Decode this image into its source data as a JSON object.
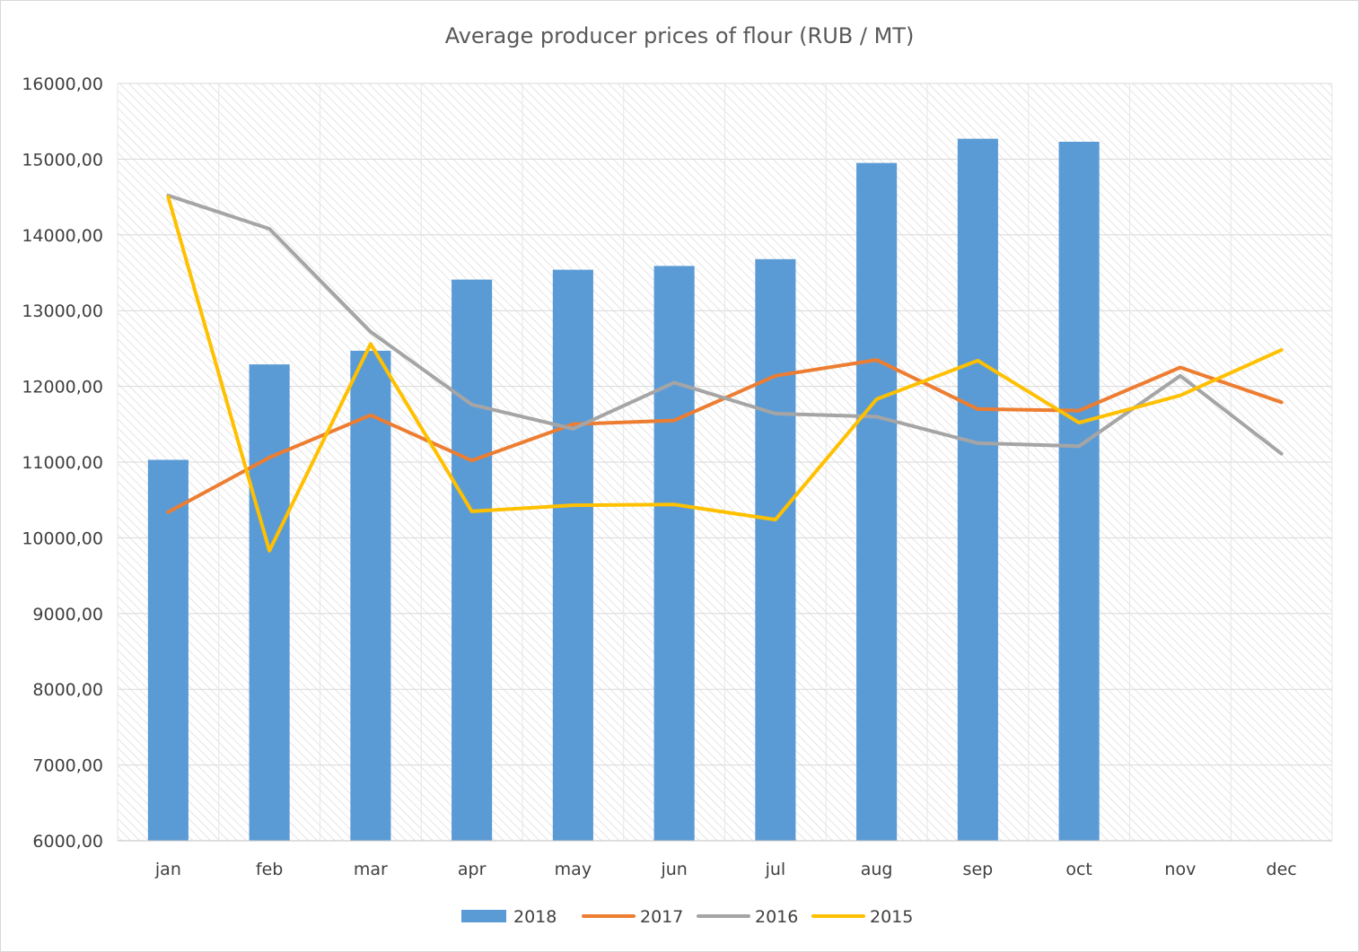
{
  "chart_data": {
    "type": "bar",
    "title": "Average producer prices of flour (RUB / MT)",
    "categories": [
      "jan",
      "feb",
      "mar",
      "apr",
      "may",
      "jun",
      "jul",
      "aug",
      "sep",
      "oct",
      "nov",
      "dec"
    ],
    "ylim": [
      6000,
      16000
    ],
    "yticks": [
      6000,
      7000,
      8000,
      9000,
      10000,
      11000,
      12000,
      13000,
      14000,
      15000,
      16000
    ],
    "ytick_labels": [
      "6000,00",
      "7000,00",
      "8000,00",
      "9000,00",
      "10000,00",
      "11000,00",
      "12000,00",
      "13000,00",
      "14000,00",
      "15000,00",
      "16000,00"
    ],
    "grid": true,
    "legend_position": "bottom",
    "series": [
      {
        "name": "2018",
        "type": "bar",
        "color": "#5b9bd5",
        "values": [
          11030,
          12290,
          12470,
          13410,
          13540,
          13590,
          13680,
          14950,
          15270,
          15230,
          null,
          null
        ]
      },
      {
        "name": "2017",
        "type": "line",
        "color": "#ed7d31",
        "values": [
          10340,
          11060,
          11620,
          11020,
          11500,
          11550,
          12140,
          12350,
          11700,
          11680,
          12250,
          11790
        ]
      },
      {
        "name": "2016",
        "type": "line",
        "color": "#a5a5a5",
        "values": [
          14520,
          14080,
          12720,
          11760,
          11440,
          12050,
          11640,
          11600,
          11250,
          11210,
          12140,
          11110
        ]
      },
      {
        "name": "2015",
        "type": "line",
        "color": "#ffc000",
        "values": [
          14500,
          9830,
          12560,
          10350,
          10430,
          10440,
          10240,
          11830,
          12340,
          11520,
          11880,
          12480
        ]
      }
    ]
  }
}
